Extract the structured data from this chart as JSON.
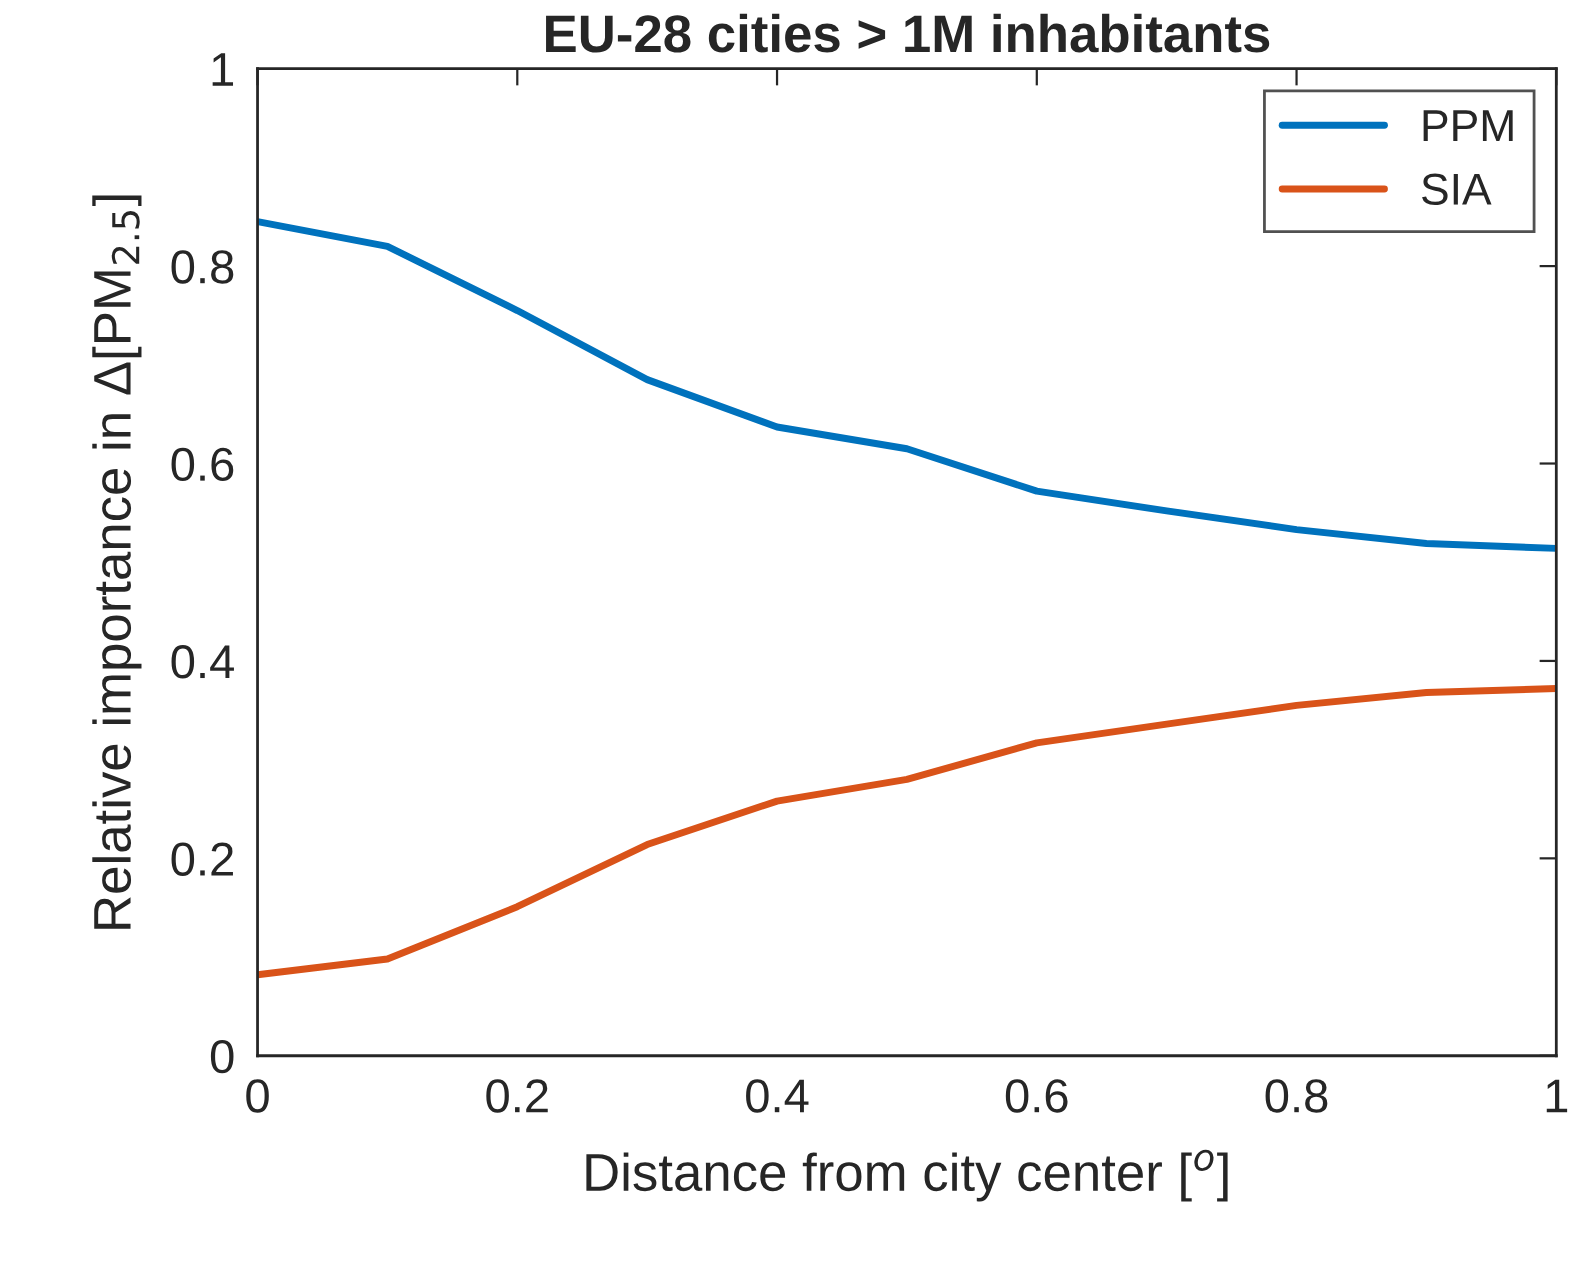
{
  "chart_data": {
    "type": "line",
    "title": "EU-28 cities > 1M inhabitants",
    "xlabel": "Distance from city center [$^{o}$]",
    "ylabel": "Relative importance in Δ[PM$_{2.5}$]",
    "x": [
      0,
      0.1,
      0.2,
      0.3,
      0.4,
      0.5,
      0.6,
      0.7,
      0.8,
      0.9,
      1
    ],
    "series": [
      {
        "name": "PPM",
        "color": "#0072bd",
        "values": [
          0.845,
          0.82,
          0.755,
          0.685,
          0.637,
          0.615,
          0.572,
          0.552,
          0.533,
          0.519,
          0.514
        ]
      },
      {
        "name": "SIA",
        "color": "#d95319",
        "values": [
          0.082,
          0.098,
          0.151,
          0.214,
          0.258,
          0.28,
          0.317,
          0.336,
          0.355,
          0.368,
          0.372
        ]
      }
    ],
    "xlim": [
      0,
      1
    ],
    "xticks": [
      0,
      0.2,
      0.4,
      0.6,
      0.8,
      1
    ],
    "ylim": [
      0,
      1
    ],
    "yticks": [
      0,
      0.2,
      0.4,
      0.6,
      0.8,
      1
    ],
    "grid": false,
    "legend": "top right",
    "marker": "none",
    "line_style": "solid"
  }
}
